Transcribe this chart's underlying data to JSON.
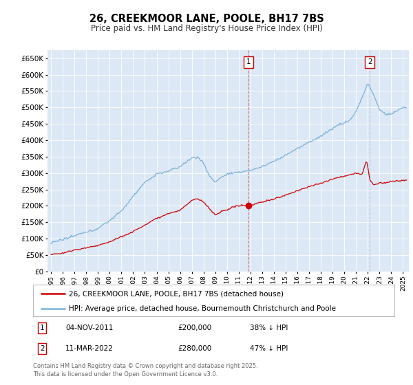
{
  "title": "26, CREEKMOOR LANE, POOLE, BH17 7BS",
  "subtitle": "Price paid vs. HM Land Registry's House Price Index (HPI)",
  "bg_color": "#dce8f5",
  "ylim": [
    0,
    675000
  ],
  "yticks": [
    0,
    50000,
    100000,
    150000,
    200000,
    250000,
    300000,
    350000,
    400000,
    450000,
    500000,
    550000,
    600000,
    650000
  ],
  "xlim_start": 1994.7,
  "xlim_end": 2025.5,
  "red_line_color": "#cc0000",
  "blue_line_color": "#7ab0d8",
  "transaction1_date": "04-NOV-2011",
  "transaction1_price": 200000,
  "transaction1_pct": "38% ↓ HPI",
  "transaction2_date": "11-MAR-2022",
  "transaction2_price": 280000,
  "transaction2_pct": "47% ↓ HPI",
  "legend_label_red": "26, CREEKMOOR LANE, POOLE, BH17 7BS (detached house)",
  "legend_label_blue": "HPI: Average price, detached house, Bournemouth Christchurch and Poole",
  "footer": "Contains HM Land Registry data © Crown copyright and database right 2025.\nThis data is licensed under the Open Government Licence v3.0.",
  "marker1_x": 2011.85,
  "marker2_x": 2022.17,
  "hpi_anchors_x": [
    1995,
    1996,
    1997,
    1998,
    1999,
    2000,
    2001,
    2002,
    2003,
    2004,
    2005,
    2006,
    2007,
    2007.5,
    2008,
    2008.5,
    2009,
    2009.5,
    2010,
    2011,
    2012,
    2013,
    2014,
    2015,
    2016,
    2017,
    2018,
    2019,
    2019.5,
    2020,
    2020.5,
    2021,
    2021.5,
    2022.0,
    2022.3,
    2022.6,
    2023,
    2023.5,
    2024,
    2024.5,
    2025
  ],
  "hpi_anchors_y": [
    88000,
    95000,
    105000,
    118000,
    132000,
    155000,
    185000,
    230000,
    270000,
    295000,
    305000,
    320000,
    345000,
    348000,
    330000,
    290000,
    270000,
    285000,
    295000,
    300000,
    308000,
    318000,
    335000,
    355000,
    375000,
    395000,
    415000,
    440000,
    450000,
    455000,
    465000,
    490000,
    530000,
    575000,
    555000,
    530000,
    495000,
    480000,
    480000,
    490000,
    500000
  ],
  "red_anchors_x": [
    1995,
    1996,
    1997,
    1998,
    1999,
    2000,
    2001,
    2002,
    2003,
    2004,
    2005,
    2006,
    2007,
    2007.5,
    2008,
    2009,
    2009.5,
    2010,
    2011,
    2011.85,
    2012,
    2013,
    2014,
    2015,
    2016,
    2017,
    2018,
    2019,
    2020,
    2021,
    2021.5,
    2021.9,
    2022.17,
    2022.5,
    2023,
    2023.5,
    2024,
    2025
  ],
  "red_anchors_y": [
    52000,
    55000,
    65000,
    72000,
    78000,
    90000,
    105000,
    120000,
    140000,
    160000,
    175000,
    185000,
    215000,
    220000,
    210000,
    170000,
    180000,
    185000,
    200000,
    200000,
    200000,
    210000,
    220000,
    232000,
    245000,
    258000,
    268000,
    280000,
    290000,
    300000,
    295000,
    340000,
    280000,
    265000,
    270000,
    270000,
    275000,
    278000
  ]
}
